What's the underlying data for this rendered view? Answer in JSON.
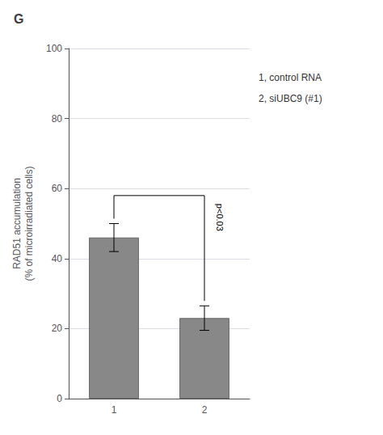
{
  "chart_data": {
    "type": "bar",
    "title": "G",
    "categories": [
      "1",
      "2"
    ],
    "values": [
      46,
      23
    ],
    "errors": [
      4,
      3.5
    ],
    "color": "#888888",
    "ylabel": "RAD51 accumulation\n(% of microirradiated cells)",
    "ylim": [
      0,
      100
    ],
    "yticks": [
      0,
      20,
      40,
      60,
      80,
      100
    ],
    "grid": true,
    "bracket": {
      "from": "1",
      "to": "2",
      "y": 58,
      "label": "p<0.03"
    },
    "annotations": [
      "1, control RNA",
      "2, siUBC9 (#1)"
    ]
  }
}
